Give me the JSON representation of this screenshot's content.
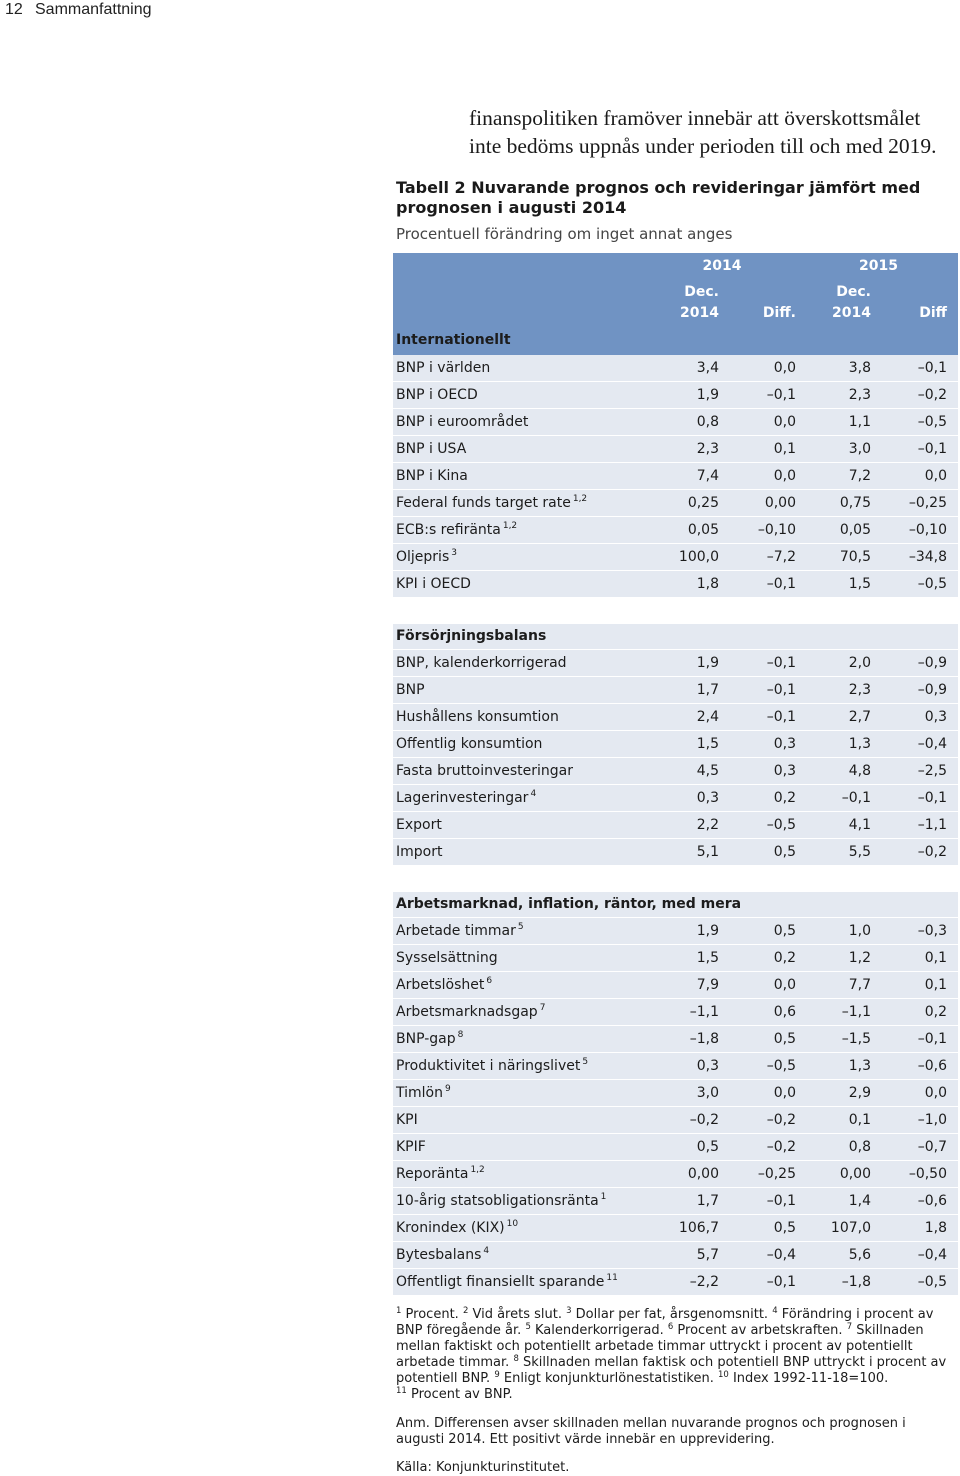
{
  "header": {
    "page_number": "12",
    "section": "Sammanfattning"
  },
  "body_text": {
    "lines": [
      "finanspolitiken framöver innebär att överskottsmålet",
      "inte bedöms uppnås under perioden till och med 2019."
    ]
  },
  "table": {
    "title_lines": [
      "Tabell 2 Nuvarande prognos och revideringar jämfört med",
      "prognosen i augusti 2014"
    ],
    "subtitle": "Procentuell förändring om inget annat anges",
    "year_headers": [
      "2014",
      "2015"
    ],
    "col_headers": [
      {
        "line1": "Dec.",
        "line2": "2014"
      },
      {
        "line2": "Diff."
      },
      {
        "line1": "Dec.",
        "line2": "2014"
      },
      {
        "line2": "Diff"
      }
    ],
    "colors": {
      "header_bg": "#7093c3",
      "row_bg": "#e4e9f1"
    },
    "sections": [
      {
        "title": "Internationellt",
        "rows": [
          {
            "label": "BNP i världen",
            "values": [
              "3,4",
              "0,0",
              "3,8",
              "–0,1"
            ]
          },
          {
            "label": "BNP i OECD",
            "values": [
              "1,9",
              "–0,1",
              "2,3",
              "–0,2"
            ]
          },
          {
            "label": "BNP i euroområdet",
            "values": [
              "0,8",
              "0,0",
              "1,1",
              "–0,5"
            ]
          },
          {
            "label": "BNP i USA",
            "values": [
              "2,3",
              "0,1",
              "3,0",
              "–0,1"
            ]
          },
          {
            "label": "BNP i Kina",
            "values": [
              "7,4",
              "0,0",
              "7,2",
              "0,0"
            ]
          },
          {
            "label": "Federal funds target rate",
            "sup": "1,2",
            "values": [
              "0,25",
              "0,00",
              "0,75",
              "–0,25"
            ]
          },
          {
            "label": "ECB:s refiränta",
            "sup": "1,2",
            "values": [
              "0,05",
              "–0,10",
              "0,05",
              "–0,10"
            ]
          },
          {
            "label": "Oljepris",
            "sup": "3",
            "values": [
              "100,0",
              "–7,2",
              "70,5",
              "–34,8"
            ]
          },
          {
            "label": "KPI i OECD",
            "values": [
              "1,8",
              "–0,1",
              "1,5",
              "–0,5"
            ]
          }
        ]
      },
      {
        "title": "Försörjningsbalans",
        "rows": [
          {
            "label": "BNP, kalenderkorrigerad",
            "values": [
              "1,9",
              "–0,1",
              "2,0",
              "–0,9"
            ]
          },
          {
            "label": "BNP",
            "values": [
              "1,7",
              "–0,1",
              "2,3",
              "–0,9"
            ]
          },
          {
            "label": "Hushållens konsumtion",
            "values": [
              "2,4",
              "–0,1",
              "2,7",
              "0,3"
            ]
          },
          {
            "label": "Offentlig konsumtion",
            "values": [
              "1,5",
              "0,3",
              "1,3",
              "–0,4"
            ]
          },
          {
            "label": "Fasta bruttoinvesteringar",
            "values": [
              "4,5",
              "0,3",
              "4,8",
              "–2,5"
            ]
          },
          {
            "label": "Lagerinvesteringar",
            "sup": "4",
            "values": [
              "0,3",
              "0,2",
              "–0,1",
              "–0,1"
            ]
          },
          {
            "label": "Export",
            "values": [
              "2,2",
              "–0,5",
              "4,1",
              "–1,1"
            ]
          },
          {
            "label": "Import",
            "values": [
              "5,1",
              "0,5",
              "5,5",
              "–0,2"
            ]
          }
        ]
      },
      {
        "title": "Arbetsmarknad, inflation, räntor, med mera",
        "rows": [
          {
            "label": "Arbetade timmar",
            "sup": "5",
            "values": [
              "1,9",
              "0,5",
              "1,0",
              "–0,3"
            ]
          },
          {
            "label": "Sysselsättning",
            "values": [
              "1,5",
              "0,2",
              "1,2",
              "0,1"
            ]
          },
          {
            "label": "Arbetslöshet",
            "sup": "6",
            "values": [
              "7,9",
              "0,0",
              "7,7",
              "0,1"
            ]
          },
          {
            "label": "Arbetsmarknadsgap",
            "sup": "7",
            "values": [
              "–1,1",
              "0,6",
              "–1,1",
              "0,2"
            ]
          },
          {
            "label": "BNP-gap",
            "sup": "8",
            "values": [
              "–1,8",
              "0,5",
              "–1,5",
              "–0,1"
            ]
          },
          {
            "label": "Produktivitet i näringslivet",
            "sup": "5",
            "values": [
              "0,3",
              "–0,5",
              "1,3",
              "–0,6"
            ]
          },
          {
            "label": "Timlön",
            "sup": "9",
            "values": [
              "3,0",
              "0,0",
              "2,9",
              "0,0"
            ]
          },
          {
            "label": "KPI",
            "values": [
              "–0,2",
              "–0,2",
              "0,1",
              "–1,0"
            ]
          },
          {
            "label": "KPIF",
            "values": [
              "0,5",
              "–0,2",
              "0,8",
              "–0,7"
            ]
          },
          {
            "label": "Reporänta",
            "sup": "1,2",
            "values": [
              "0,00",
              "–0,25",
              "0,00",
              "–0,50"
            ]
          },
          {
            "label": "10-årig statsobligationsränta",
            "sup": "1",
            "values": [
              "1,7",
              "–0,1",
              "1,4",
              "–0,6"
            ]
          },
          {
            "label": "Kronindex (KIX)",
            "sup": "10",
            "values": [
              "106,7",
              "0,5",
              "107,0",
              "1,8"
            ]
          },
          {
            "label": "Bytesbalans",
            "sup": "4",
            "values": [
              "5,7",
              "–0,4",
              "5,6",
              "–0,4"
            ]
          },
          {
            "label": "Offentligt finansiellt sparande",
            "sup": "11",
            "values": [
              "–2,2",
              "–0,1",
              "–1,8",
              "–0,5"
            ]
          }
        ]
      }
    ]
  },
  "footnotes": {
    "lines": [
      [
        {
          "sup": "1",
          "text": " Procent. "
        },
        {
          "sup": "2",
          "text": " Vid årets slut. "
        },
        {
          "sup": "3",
          "text": " Dollar per fat, årsgenomsnitt. "
        },
        {
          "sup": "4",
          "text": " Förändring i procent av"
        }
      ],
      [
        {
          "text": "BNP föregående år. "
        },
        {
          "sup": "5",
          "text": " Kalenderkorrigerad. "
        },
        {
          "sup": "6",
          "text": " Procent av arbetskraften. "
        },
        {
          "sup": "7",
          "text": " Skillnaden"
        }
      ],
      [
        {
          "text": "mellan faktiskt och potentiellt arbetade timmar uttryckt i procent av potentiellt"
        }
      ],
      [
        {
          "text": "arbetade timmar. "
        },
        {
          "sup": "8",
          "text": " Skillnaden mellan faktisk och potentiell BNP uttryckt i procent av"
        }
      ],
      [
        {
          "text": "potentiell BNP. "
        },
        {
          "sup": "9",
          "text": " Enligt konjunkturlönestatistiken. "
        },
        {
          "sup": "10",
          "text": " Index 1992-11-18=100."
        }
      ],
      [
        {
          "sup": "11",
          "text": " Procent av BNP."
        }
      ]
    ]
  },
  "note": {
    "lines": [
      "Anm. Differensen avser skillnaden mellan nuvarande prognos och prognosen i",
      "augusti 2014. Ett positivt värde innebär en upprevidering."
    ]
  },
  "source": "Källa: Konjunkturinstitutet."
}
